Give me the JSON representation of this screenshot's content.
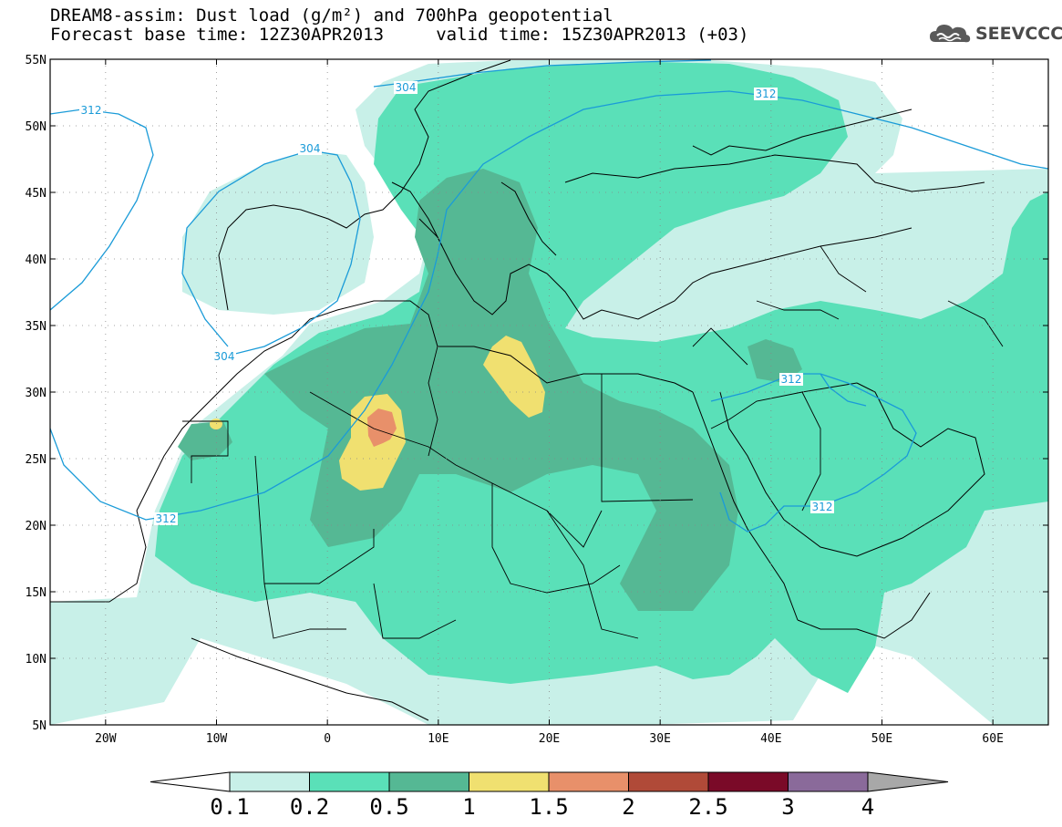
{
  "header": {
    "title_line1": "DREAM8-assim: Dust load (g/m²) and 700hPa geopotential",
    "title_line2": "Forecast base time: 12Z30APR2013     valid time: 15Z30APR2013 (+03)",
    "logo_text": "SEEVCCC",
    "logo_icon": "cloud-icon"
  },
  "map": {
    "lat_labels": [
      "55N",
      "50N",
      "45N",
      "40N",
      "35N",
      "30N",
      "25N",
      "20N",
      "15N",
      "10N",
      "5N"
    ],
    "lon_labels": [
      "20W",
      "10W",
      "0",
      "10E",
      "20E",
      "30E",
      "40E",
      "50E",
      "60E"
    ],
    "contour_labels": [
      "312",
      "304",
      "312",
      "304",
      "312",
      "312",
      "312"
    ],
    "contour_color": "#1a9bd8"
  },
  "colorbar": {
    "levels": [
      "0.1",
      "0.2",
      "0.5",
      "1",
      "1.5",
      "2",
      "2.5",
      "3",
      "4"
    ],
    "colors": [
      "#c8f0e8",
      "#5ae0b8",
      "#55b894",
      "#f0e070",
      "#e8906a",
      "#b04a38",
      "#7a0a28",
      "#8a6a9a",
      "#a8a8a8"
    ]
  }
}
